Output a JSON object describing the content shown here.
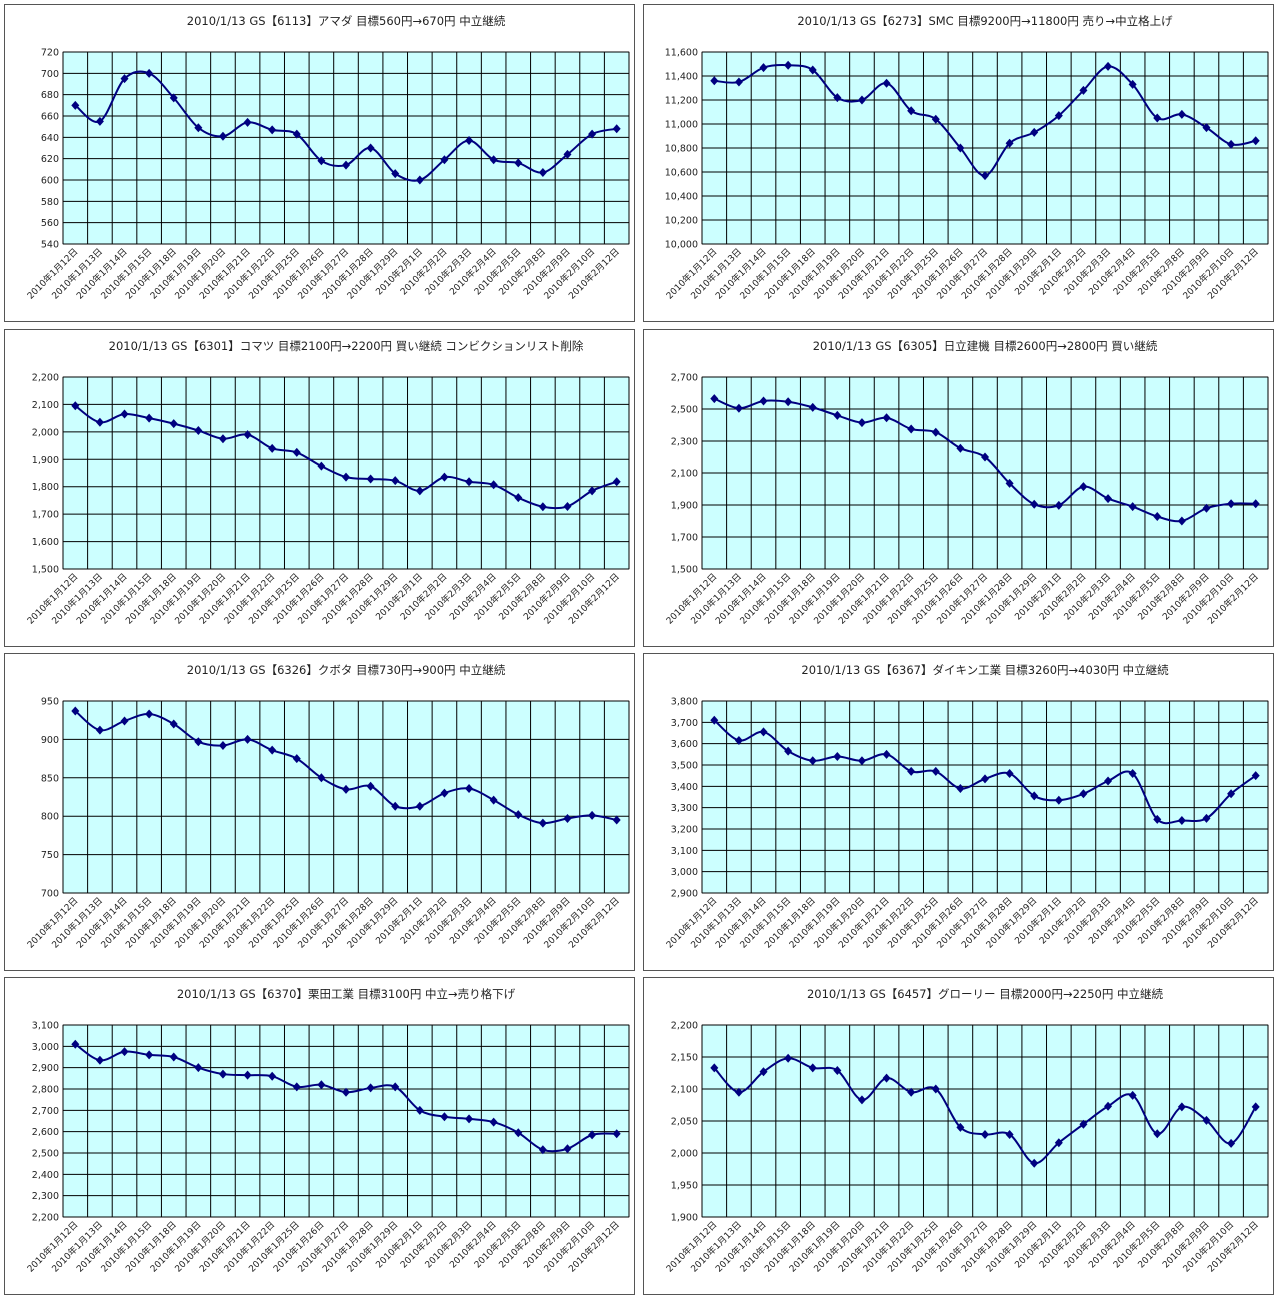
{
  "chart_data": [
    {
      "type": "line",
      "title": "2010/1/13 GS【6113】アマダ 目標560円→670円 中立継続",
      "ylim": [
        540,
        720
      ],
      "ystep": 20,
      "grid": true,
      "legend": "none",
      "series": [
        {
          "name": "6113",
          "values": [
            670,
            655,
            695,
            700,
            677,
            649,
            641,
            654,
            647,
            643,
            618,
            614,
            630,
            606,
            600,
            619,
            637,
            619,
            616,
            607,
            624,
            643,
            648
          ]
        }
      ]
    },
    {
      "type": "line",
      "title": "2010/1/13 GS【6273】SMC 目標9200円→11800円 売り→中立格上げ",
      "ylim": [
        10000,
        11600
      ],
      "ystep": 200,
      "grid": true,
      "legend": "none",
      "series": [
        {
          "name": "6273",
          "values": [
            11360,
            11350,
            11470,
            11490,
            11450,
            11220,
            11200,
            11340,
            11110,
            11040,
            10800,
            10570,
            10840,
            10930,
            11070,
            11280,
            11480,
            11330,
            11050,
            11080,
            10970,
            10830,
            10860
          ]
        }
      ]
    },
    {
      "type": "line",
      "title": "2010/1/13 GS【6301】コマツ 目標2100円→2200円 買い継続 コンビクションリスト削除",
      "ylim": [
        1500,
        2200
      ],
      "ystep": 100,
      "grid": true,
      "legend": "none",
      "series": [
        {
          "name": "6301",
          "values": [
            2095,
            2035,
            2065,
            2050,
            2030,
            2005,
            1975,
            1990,
            1940,
            1925,
            1875,
            1835,
            1828,
            1822,
            1785,
            1835,
            1818,
            1807,
            1760,
            1727,
            1728,
            1785,
            1818
          ]
        }
      ]
    },
    {
      "type": "line",
      "title": "2010/1/13 GS【6305】日立建機 目標2600円→2800円 買い継続",
      "ylim": [
        1500,
        2700
      ],
      "ystep": 200,
      "grid": true,
      "legend": "none",
      "series": [
        {
          "name": "6305",
          "values": [
            2565,
            2505,
            2550,
            2545,
            2510,
            2460,
            2415,
            2445,
            2375,
            2355,
            2255,
            2200,
            2035,
            1905,
            1898,
            2015,
            1940,
            1890,
            1828,
            1800,
            1880,
            1908,
            1908
          ]
        }
      ]
    },
    {
      "type": "line",
      "title": "2010/1/13 GS【6326】クボタ 目標730円→900円 中立継続",
      "ylim": [
        700,
        950
      ],
      "ystep": 50,
      "grid": true,
      "legend": "none",
      "series": [
        {
          "name": "6326",
          "values": [
            937,
            912,
            924,
            933,
            920,
            897,
            892,
            900,
            886,
            875,
            850,
            835,
            839,
            813,
            813,
            830,
            836,
            821,
            802,
            791,
            797,
            801,
            795
          ]
        }
      ]
    },
    {
      "type": "line",
      "title": "2010/1/13 GS【6367】ダイキン工業 目標3260円→4030円 中立継続",
      "ylim": [
        2900,
        3800
      ],
      "ystep": 100,
      "grid": true,
      "legend": "none",
      "series": [
        {
          "name": "6367",
          "values": [
            3710,
            3615,
            3655,
            3565,
            3520,
            3540,
            3520,
            3550,
            3470,
            3470,
            3390,
            3435,
            3460,
            3355,
            3335,
            3365,
            3425,
            3460,
            3245,
            3240,
            3250,
            3365,
            3450
          ]
        }
      ]
    },
    {
      "type": "line",
      "title": "2010/1/13 GS【6370】栗田工業 目標3100円 中立→売り格下げ",
      "ylim": [
        2200,
        3100
      ],
      "ystep": 100,
      "grid": true,
      "legend": "none",
      "series": [
        {
          "name": "6370",
          "values": [
            3010,
            2935,
            2975,
            2960,
            2950,
            2900,
            2870,
            2865,
            2860,
            2810,
            2820,
            2785,
            2805,
            2810,
            2700,
            2670,
            2660,
            2645,
            2595,
            2515,
            2520,
            2585,
            2590
          ]
        }
      ]
    },
    {
      "type": "line",
      "title": "2010/1/13 GS【6457】グローリー 目標2000円→2250円 中立継続",
      "ylim": [
        1900,
        2200
      ],
      "ystep": 50,
      "grid": true,
      "legend": "none",
      "series": [
        {
          "name": "6457",
          "values": [
            2133,
            2095,
            2127,
            2148,
            2133,
            2129,
            2083,
            2117,
            2095,
            2100,
            2040,
            2029,
            2029,
            1984,
            2016,
            2045,
            2073,
            2090,
            2030,
            2072,
            2051,
            2015,
            2072
          ]
        }
      ]
    }
  ],
  "categories": [
    "2010年1月12日",
    "2010年1月13日",
    "2010年1月14日",
    "2010年1月15日",
    "2010年1月18日",
    "2010年1月19日",
    "2010年1月20日",
    "2010年1月21日",
    "2010年1月22日",
    "2010年1月25日",
    "2010年1月26日",
    "2010年1月27日",
    "2010年1月28日",
    "2010年1月29日",
    "2010年2月1日",
    "2010年2月2日",
    "2010年2月3日",
    "2010年2月4日",
    "2010年2月5日",
    "2010年2月8日",
    "2010年2月9日",
    "2010年2月10日",
    "2010年2月12日"
  ],
  "colors": {
    "plot_bg": "#ccffff",
    "line": "#000080",
    "grid": "#000000"
  }
}
